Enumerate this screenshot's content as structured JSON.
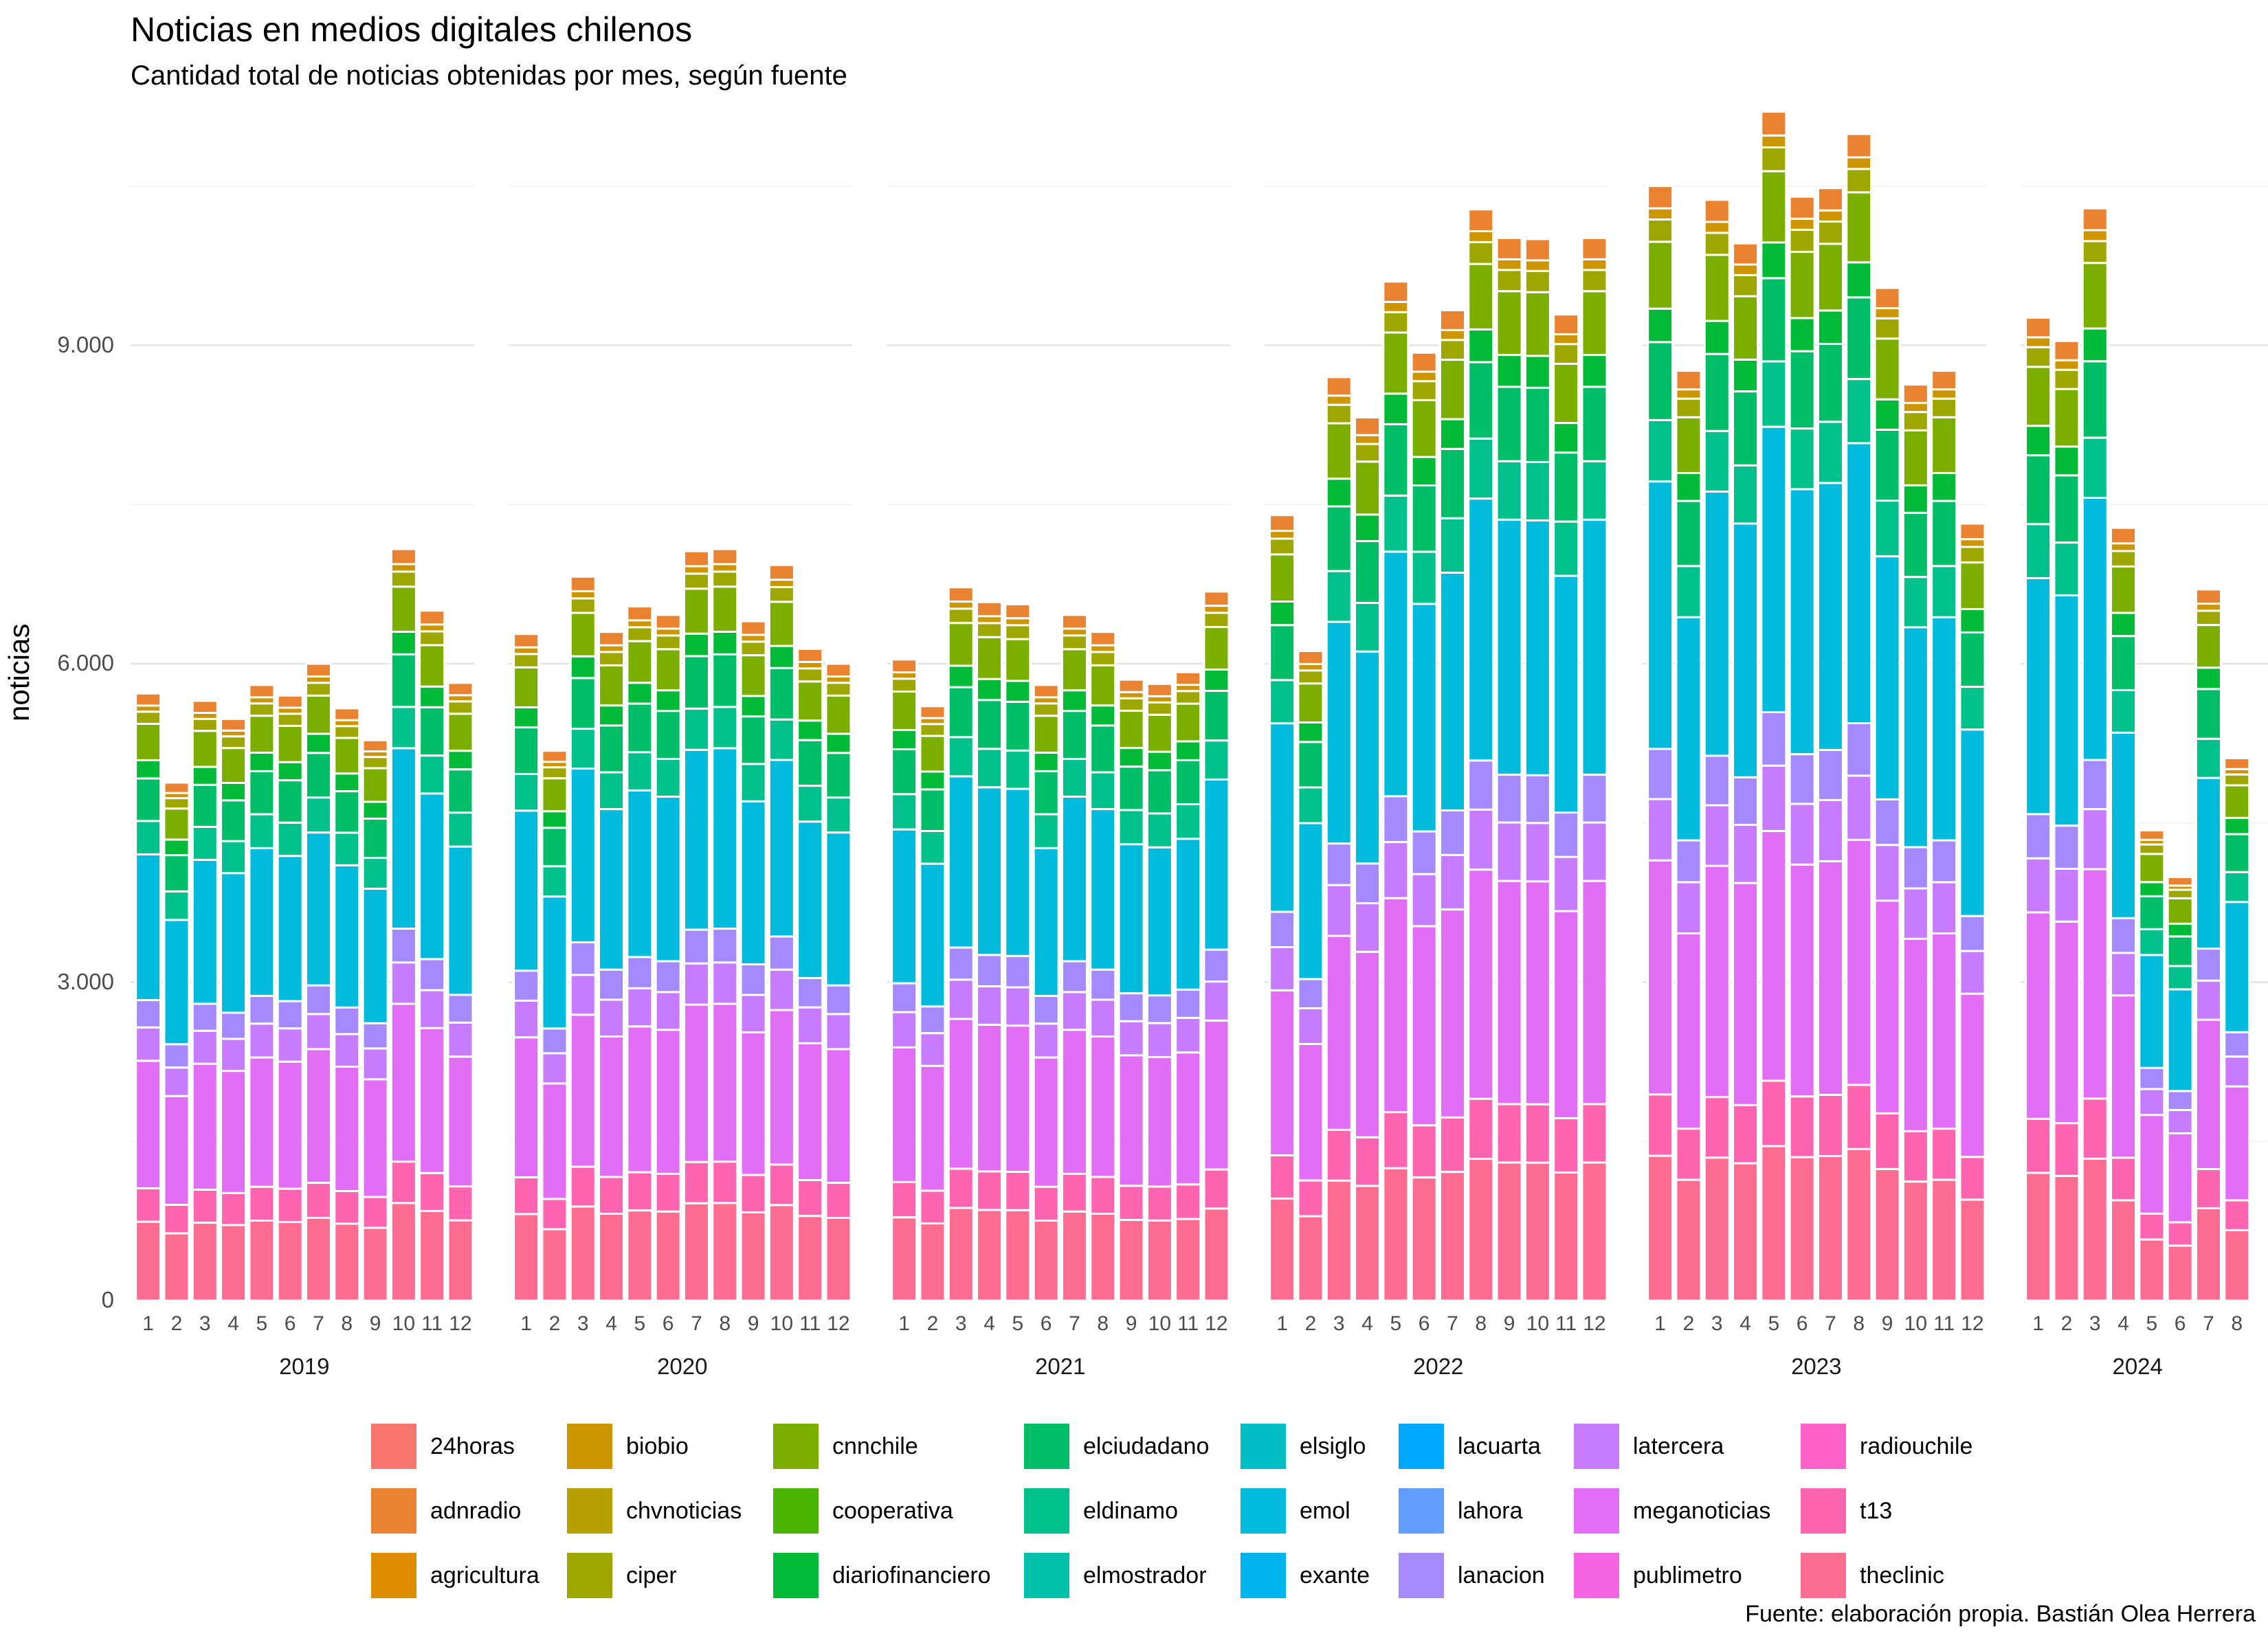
{
  "chart_data": {
    "type": "bar",
    "stacked": true,
    "title": "Noticias en medios digitales chilenos",
    "subtitle": "Cantidad total de noticias obtenidas por mes, según fuente",
    "ylabel": "noticias",
    "xlabel": "",
    "caption": "Fuente: elaboración propia. Bastián Olea Herrera",
    "ylim": [
      0,
      11500
    ],
    "y_ticks": [
      0,
      3000,
      6000,
      9000
    ],
    "y_tick_labels": [
      "0",
      "3.000",
      "6.000",
      "9.000"
    ],
    "grid": true,
    "legend_position": "bottom",
    "facets": [
      {
        "label": "2019",
        "months": [
          "1",
          "2",
          "3",
          "4",
          "5",
          "6",
          "7",
          "8",
          "9",
          "10",
          "11",
          "12"
        ],
        "totals": [
          5720,
          4880,
          5650,
          5480,
          5800,
          5700,
          6000,
          5580,
          5280,
          7080,
          6500,
          5820
        ]
      },
      {
        "label": "2020",
        "months": [
          "1",
          "2",
          "3",
          "4",
          "5",
          "6",
          "7",
          "8",
          "9",
          "10",
          "11",
          "12"
        ],
        "totals": [
          6280,
          5180,
          6820,
          6300,
          6540,
          6460,
          7060,
          7080,
          6400,
          6930,
          6140,
          6000
        ]
      },
      {
        "label": "2021",
        "months": [
          "1",
          "2",
          "3",
          "4",
          "5",
          "6",
          "7",
          "8",
          "9",
          "10",
          "11",
          "12"
        ],
        "totals": [
          6040,
          5600,
          6720,
          6580,
          6560,
          5800,
          6460,
          6300,
          5850,
          5810,
          5920,
          6680
        ]
      },
      {
        "label": "2022",
        "months": [
          "1",
          "2",
          "3",
          "4",
          "5",
          "6",
          "7",
          "8",
          "9",
          "10",
          "11",
          "12"
        ],
        "totals": [
          7400,
          6120,
          8700,
          8320,
          9600,
          8930,
          9330,
          10280,
          10010,
          10000,
          9290,
          10010
        ]
      },
      {
        "label": "2023",
        "months": [
          "1",
          "2",
          "3",
          "4",
          "5",
          "6",
          "7",
          "8",
          "9",
          "10",
          "11",
          "12"
        ],
        "totals": [
          10500,
          8760,
          10370,
          9960,
          11200,
          10400,
          10480,
          10990,
          9540,
          8630,
          8760,
          7320
        ]
      },
      {
        "label": "2024",
        "months": [
          "1",
          "2",
          "3",
          "4",
          "5",
          "6",
          "7",
          "8"
        ],
        "totals": [
          9260,
          9040,
          10290,
          7280,
          4430,
          3990,
          6700,
          5110
        ]
      }
    ],
    "series": [
      {
        "name": "24horas",
        "color": "#F8766D"
      },
      {
        "name": "adnradio",
        "color": "#EA8331"
      },
      {
        "name": "agricultura",
        "color": "#D89000"
      },
      {
        "name": "biobio",
        "color": "#C09B00"
      },
      {
        "name": "chvnoticias",
        "color": "#A3A500"
      },
      {
        "name": "ciper",
        "color": "#7CAE00"
      },
      {
        "name": "cnnchile",
        "color": "#39B600"
      },
      {
        "name": "cooperativa",
        "color": "#00BB4E"
      },
      {
        "name": "diariofinanciero",
        "color": "#00BF7D"
      },
      {
        "name": "elciudadano",
        "color": "#00C1A3"
      },
      {
        "name": "eldinamo",
        "color": "#00BFC4"
      },
      {
        "name": "elmostrador",
        "color": "#00BAE0"
      },
      {
        "name": "elsiglo",
        "color": "#00B0F6"
      },
      {
        "name": "emol",
        "color": "#35A2FF"
      },
      {
        "name": "exante",
        "color": "#9590FF"
      },
      {
        "name": "lacuarta",
        "color": "#C77CFF"
      },
      {
        "name": "lahora",
        "color": "#E76BF3"
      },
      {
        "name": "lanacion",
        "color": "#FA62DB"
      },
      {
        "name": "latercera",
        "color": "#FF62BC"
      },
      {
        "name": "meganoticias",
        "color": "#FF6C91"
      },
      {
        "name": "publimetro",
        "color": "#FF6C91"
      },
      {
        "name": "radiouchile",
        "color": "#FF62BC"
      },
      {
        "name": "t13",
        "color": "#FF6C91"
      },
      {
        "name": "theclinic",
        "color": "#FF6C91"
      }
    ],
    "legend": [
      {
        "name": "24horas",
        "color": "#F8766D"
      },
      {
        "name": "adnradio",
        "color": "#EA8331"
      },
      {
        "name": "agricultura",
        "color": "#DE8C00"
      },
      {
        "name": "biobio",
        "color": "#CD9600"
      },
      {
        "name": "chvnoticias",
        "color": "#B79F00"
      },
      {
        "name": "ciper",
        "color": "#9DA700"
      },
      {
        "name": "cnnchile",
        "color": "#7CAE00"
      },
      {
        "name": "cooperativa",
        "color": "#49B500"
      },
      {
        "name": "diariofinanciero",
        "color": "#00BA38"
      },
      {
        "name": "elciudadano",
        "color": "#00BE67"
      },
      {
        "name": "eldinamo",
        "color": "#00C08B"
      },
      {
        "name": "elmostrador",
        "color": "#00C1AA"
      },
      {
        "name": "elsiglo",
        "color": "#00BFC4"
      },
      {
        "name": "emol",
        "color": "#00BBDC"
      },
      {
        "name": "exante",
        "color": "#00B4EF"
      },
      {
        "name": "lacuarta",
        "color": "#00A9FF"
      },
      {
        "name": "lahora",
        "color": "#619CFF"
      },
      {
        "name": "lanacion",
        "color": "#A58AFF"
      },
      {
        "name": "latercera",
        "color": "#C77CFF"
      },
      {
        "name": "meganoticias",
        "color": "#E36EF6"
      },
      {
        "name": "publimetro",
        "color": "#F564E3"
      },
      {
        "name": "radiouchile",
        "color": "#FF61C9"
      },
      {
        "name": "t13",
        "color": "#FF64B0"
      },
      {
        "name": "theclinic",
        "color": "#FF6C91"
      }
    ],
    "segment_shares": [
      {
        "name": "theclinic",
        "share": 0.13
      },
      {
        "name": "t13",
        "share": 0.055
      },
      {
        "name": "meganoticias",
        "share": 0.21
      },
      {
        "name": "latercera",
        "share": 0.055
      },
      {
        "name": "lanacion",
        "share": 0.045
      },
      {
        "name": "emol",
        "share": 0.24
      },
      {
        "name": "eldinamo",
        "share": 0.055
      },
      {
        "name": "elciudadano",
        "share": 0.07
      },
      {
        "name": "diariofinanciero",
        "share": 0.03
      },
      {
        "name": "cnnchile",
        "share": 0.06
      },
      {
        "name": "ciper",
        "share": 0.02
      },
      {
        "name": "biobio",
        "share": 0.01
      },
      {
        "name": "adnradio",
        "share": 0.02
      }
    ]
  }
}
